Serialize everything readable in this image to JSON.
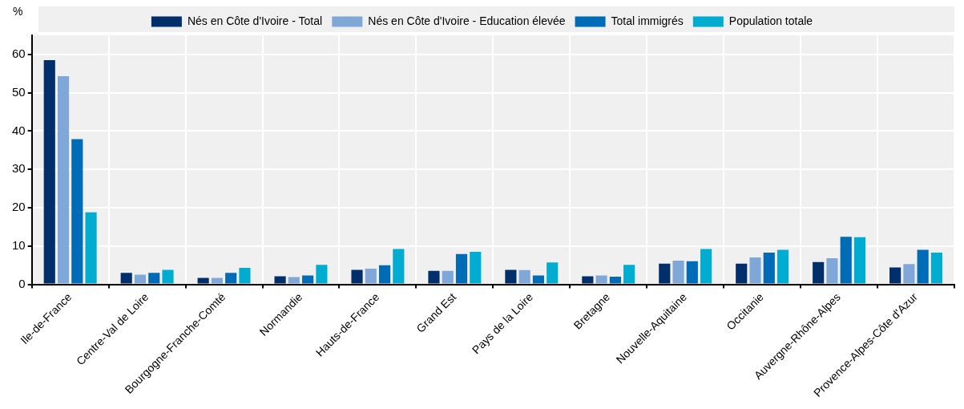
{
  "chart_data": {
    "type": "bar",
    "ylabel": "%",
    "categories": [
      "Ile-de-France",
      "Centre-Val de Loire",
      "Bourgogne-Franche-Comté",
      "Normandie",
      "Hauts-de-France",
      "Grand Est",
      "Pays de la Loire",
      "Bretagne",
      "Nouvelle-Aquitaine",
      "Occitanie",
      "Auvergne-Rhône-Alpes",
      "Provence-Alpes-Côte d'Azur"
    ],
    "series": [
      {
        "name": "Nés en Côte d'Ivoire - Total",
        "color": "#002f6c",
        "values": [
          58.5,
          3.0,
          1.7,
          2.1,
          3.8,
          3.5,
          3.8,
          2.1,
          5.4,
          5.4,
          5.8,
          4.4
        ]
      },
      {
        "name": "Nés en Côte d'Ivoire - Education élevée",
        "color": "#7fa8d9",
        "values": [
          54.3,
          2.5,
          1.7,
          1.9,
          4.1,
          3.5,
          3.7,
          2.3,
          6.2,
          7.0,
          6.8,
          5.3
        ]
      },
      {
        "name": "Total immigrés",
        "color": "#006bb6",
        "values": [
          37.9,
          3.0,
          3.0,
          2.3,
          5.0,
          7.9,
          2.3,
          2.0,
          6.0,
          8.3,
          12.4,
          9.0
        ]
      },
      {
        "name": "Population totale",
        "color": "#00acd0",
        "values": [
          18.8,
          3.8,
          4.3,
          5.1,
          9.2,
          8.5,
          5.7,
          5.1,
          9.2,
          9.0,
          12.3,
          8.3
        ]
      }
    ],
    "ylim": [
      0,
      65
    ],
    "yticks": [
      0,
      10,
      20,
      30,
      40,
      50,
      60
    ],
    "grid": true,
    "legend": "top"
  }
}
